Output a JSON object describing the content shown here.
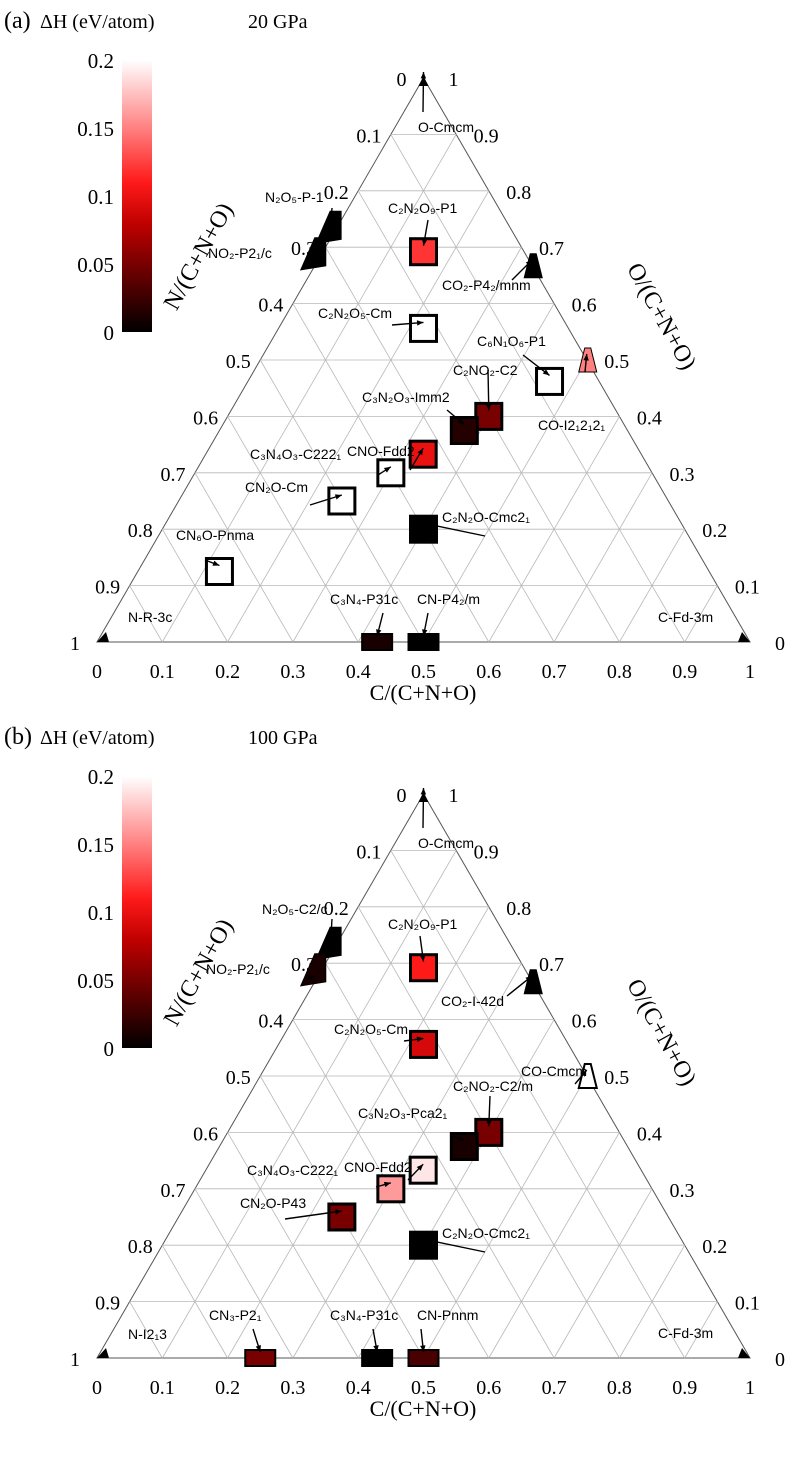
{
  "chart_data": [
    {
      "type": "scatter",
      "panel_label": "(a)",
      "colorbar_label": "ΔH (eV/atom)",
      "pressure": "20 GPa",
      "colorbar_ticks": [
        "0.2",
        "0.15",
        "0.1",
        "0.05",
        "0"
      ],
      "colorbar_range": [
        0,
        0.2
      ],
      "xlabel": "C/(C+N+O)",
      "left_label": "N/(C+N+O)",
      "right_label": "O/(C+N+O)",
      "bottom_ticks": [
        "0",
        "0.1",
        "0.2",
        "0.3",
        "0.4",
        "0.5",
        "0.6",
        "0.7",
        "0.8",
        "0.9",
        "1"
      ],
      "left_ticks": [
        "0",
        "0.1",
        "0.2",
        "0.3",
        "0.4",
        "0.5",
        "0.6",
        "0.7",
        "0.8",
        "0.9",
        "1"
      ],
      "right_ticks": [
        "1",
        "0.9",
        "0.8",
        "0.7",
        "0.6",
        "0.5",
        "0.4",
        "0.3",
        "0.2",
        "0.1",
        "0"
      ],
      "points": [
        {
          "label": "N-R-3c",
          "c": 0.0,
          "o": 0.0,
          "dH": 0.0,
          "marker": "triangle"
        },
        {
          "label": "C-Fd-3m",
          "c": 1.0,
          "o": 0.0,
          "dH": 0.0,
          "marker": "triangle"
        },
        {
          "label": "O-Cmcm",
          "c": 0.0,
          "o": 1.0,
          "dH": 0.0,
          "marker": "triangle"
        },
        {
          "label": "N₂O₅-P-1",
          "c": 0.0,
          "o": 0.714,
          "dH": 0.0,
          "marker": "triangle"
        },
        {
          "label": "NO₂-P2₁/c",
          "c": 0.0,
          "o": 0.667,
          "dH": 0.0,
          "marker": "triangle"
        },
        {
          "label": "C₂N₂O₉-P1",
          "c": 0.154,
          "o": 0.692,
          "dH": 0.12,
          "marker": "square"
        },
        {
          "label": "CO₂-P4₂/mnm",
          "c": 0.333,
          "o": 0.667,
          "dH": 0.0,
          "marker": "triangle"
        },
        {
          "label": "C₂N₂O₅-Cm",
          "c": 0.222,
          "o": 0.556,
          "dH": null,
          "marker": "square"
        },
        {
          "label": "C₆N₁O₆-P1",
          "c": 0.462,
          "o": 0.462,
          "dH": null,
          "marker": "square"
        },
        {
          "label": "CO-I2₁2₁2₁",
          "c": 0.5,
          "o": 0.5,
          "dH": 0.15,
          "marker": "triangle"
        },
        {
          "label": "C₂NO₂-C2",
          "c": 0.4,
          "o": 0.4,
          "dH": 0.05,
          "marker": "square"
        },
        {
          "label": "C₃N₂O₃-Imm2",
          "c": 0.375,
          "o": 0.375,
          "dH": 0.015,
          "marker": "square"
        },
        {
          "label": "CNO-Fdd2",
          "c": 0.333,
          "o": 0.333,
          "dH": 0.1,
          "marker": "square"
        },
        {
          "label": "C₃N₄O₃-C222₁",
          "c": 0.3,
          "o": 0.3,
          "dH": null,
          "marker": "square"
        },
        {
          "label": "CN₂O-Cm",
          "c": 0.25,
          "o": 0.25,
          "dH": null,
          "marker": "square"
        },
        {
          "label": "C₂N₂O-Cmc2₁",
          "c": 0.4,
          "o": 0.2,
          "dH": 0.0,
          "marker": "square"
        },
        {
          "label": "CN₆O-Pnma",
          "c": 0.125,
          "o": 0.125,
          "dH": null,
          "marker": "square"
        },
        {
          "label": "C₃N₄-P31c",
          "c": 0.429,
          "o": 0.0,
          "dH": 0.01,
          "marker": "rect"
        },
        {
          "label": "CN-P4₂/m",
          "c": 0.5,
          "o": 0.0,
          "dH": 0.0,
          "marker": "rect"
        }
      ]
    },
    {
      "type": "scatter",
      "panel_label": "(b)",
      "colorbar_label": "ΔH (eV/atom)",
      "pressure": "100 GPa",
      "colorbar_ticks": [
        "0.2",
        "0.15",
        "0.1",
        "0.05",
        "0"
      ],
      "colorbar_range": [
        0,
        0.2
      ],
      "xlabel": "C/(C+N+O)",
      "left_label": "N/(C+N+O)",
      "right_label": "O/(C+N+O)",
      "bottom_ticks": [
        "0",
        "0.1",
        "0.2",
        "0.3",
        "0.4",
        "0.5",
        "0.6",
        "0.7",
        "0.8",
        "0.9",
        "1"
      ],
      "left_ticks": [
        "0",
        "0.1",
        "0.2",
        "0.3",
        "0.4",
        "0.5",
        "0.6",
        "0.7",
        "0.8",
        "0.9",
        "1"
      ],
      "right_ticks": [
        "1",
        "0.9",
        "0.8",
        "0.7",
        "0.6",
        "0.5",
        "0.4",
        "0.3",
        "0.2",
        "0.1",
        "0"
      ],
      "points": [
        {
          "label": "N-I2₁3",
          "c": 0.0,
          "o": 0.0,
          "dH": 0.0,
          "marker": "triangle"
        },
        {
          "label": "C-Fd-3m",
          "c": 1.0,
          "o": 0.0,
          "dH": 0.0,
          "marker": "triangle"
        },
        {
          "label": "O-Cmcm",
          "c": 0.0,
          "o": 1.0,
          "dH": 0.0,
          "marker": "triangle"
        },
        {
          "label": "N₂O₅-C2/c",
          "c": 0.0,
          "o": 0.714,
          "dH": 0.0,
          "marker": "triangle"
        },
        {
          "label": "NO₂-P2₁/c",
          "c": 0.0,
          "o": 0.667,
          "dH": 0.01,
          "marker": "triangle"
        },
        {
          "label": "C₂N₂O₉-P1",
          "c": 0.154,
          "o": 0.692,
          "dH": 0.11,
          "marker": "square"
        },
        {
          "label": "CO₂-I-42d",
          "c": 0.333,
          "o": 0.667,
          "dH": 0.0,
          "marker": "triangle"
        },
        {
          "label": "C₂N₂O₅-Cm",
          "c": 0.222,
          "o": 0.556,
          "dH": 0.09,
          "marker": "square"
        },
        {
          "label": "CO-Cmcm",
          "c": 0.5,
          "o": 0.5,
          "dH": null,
          "marker": "triangle"
        },
        {
          "label": "C₂NO₂-C2/m",
          "c": 0.4,
          "o": 0.4,
          "dH": 0.05,
          "marker": "square"
        },
        {
          "label": "C₃N₂O₃-Pca2₁",
          "c": 0.375,
          "o": 0.375,
          "dH": 0.01,
          "marker": "square"
        },
        {
          "label": "CNO-Fdd2",
          "c": 0.333,
          "o": 0.333,
          "dH": 0.19,
          "marker": "square"
        },
        {
          "label": "C₃N₄O₃-C222₁",
          "c": 0.3,
          "o": 0.3,
          "dH": 0.16,
          "marker": "square"
        },
        {
          "label": "CN₂O-P43",
          "c": 0.25,
          "o": 0.25,
          "dH": 0.05,
          "marker": "square"
        },
        {
          "label": "C₂N₂O-Cmc2₁",
          "c": 0.4,
          "o": 0.2,
          "dH": 0.0,
          "marker": "square"
        },
        {
          "label": "CN₃-P2₁",
          "c": 0.25,
          "o": 0.0,
          "dH": 0.05,
          "marker": "rect"
        },
        {
          "label": "C₃N₄-P31c",
          "c": 0.429,
          "o": 0.0,
          "dH": 0.0,
          "marker": "rect"
        },
        {
          "label": "CN-Pnnm",
          "c": 0.5,
          "o": 0.0,
          "dH": 0.03,
          "marker": "rect"
        }
      ]
    }
  ]
}
